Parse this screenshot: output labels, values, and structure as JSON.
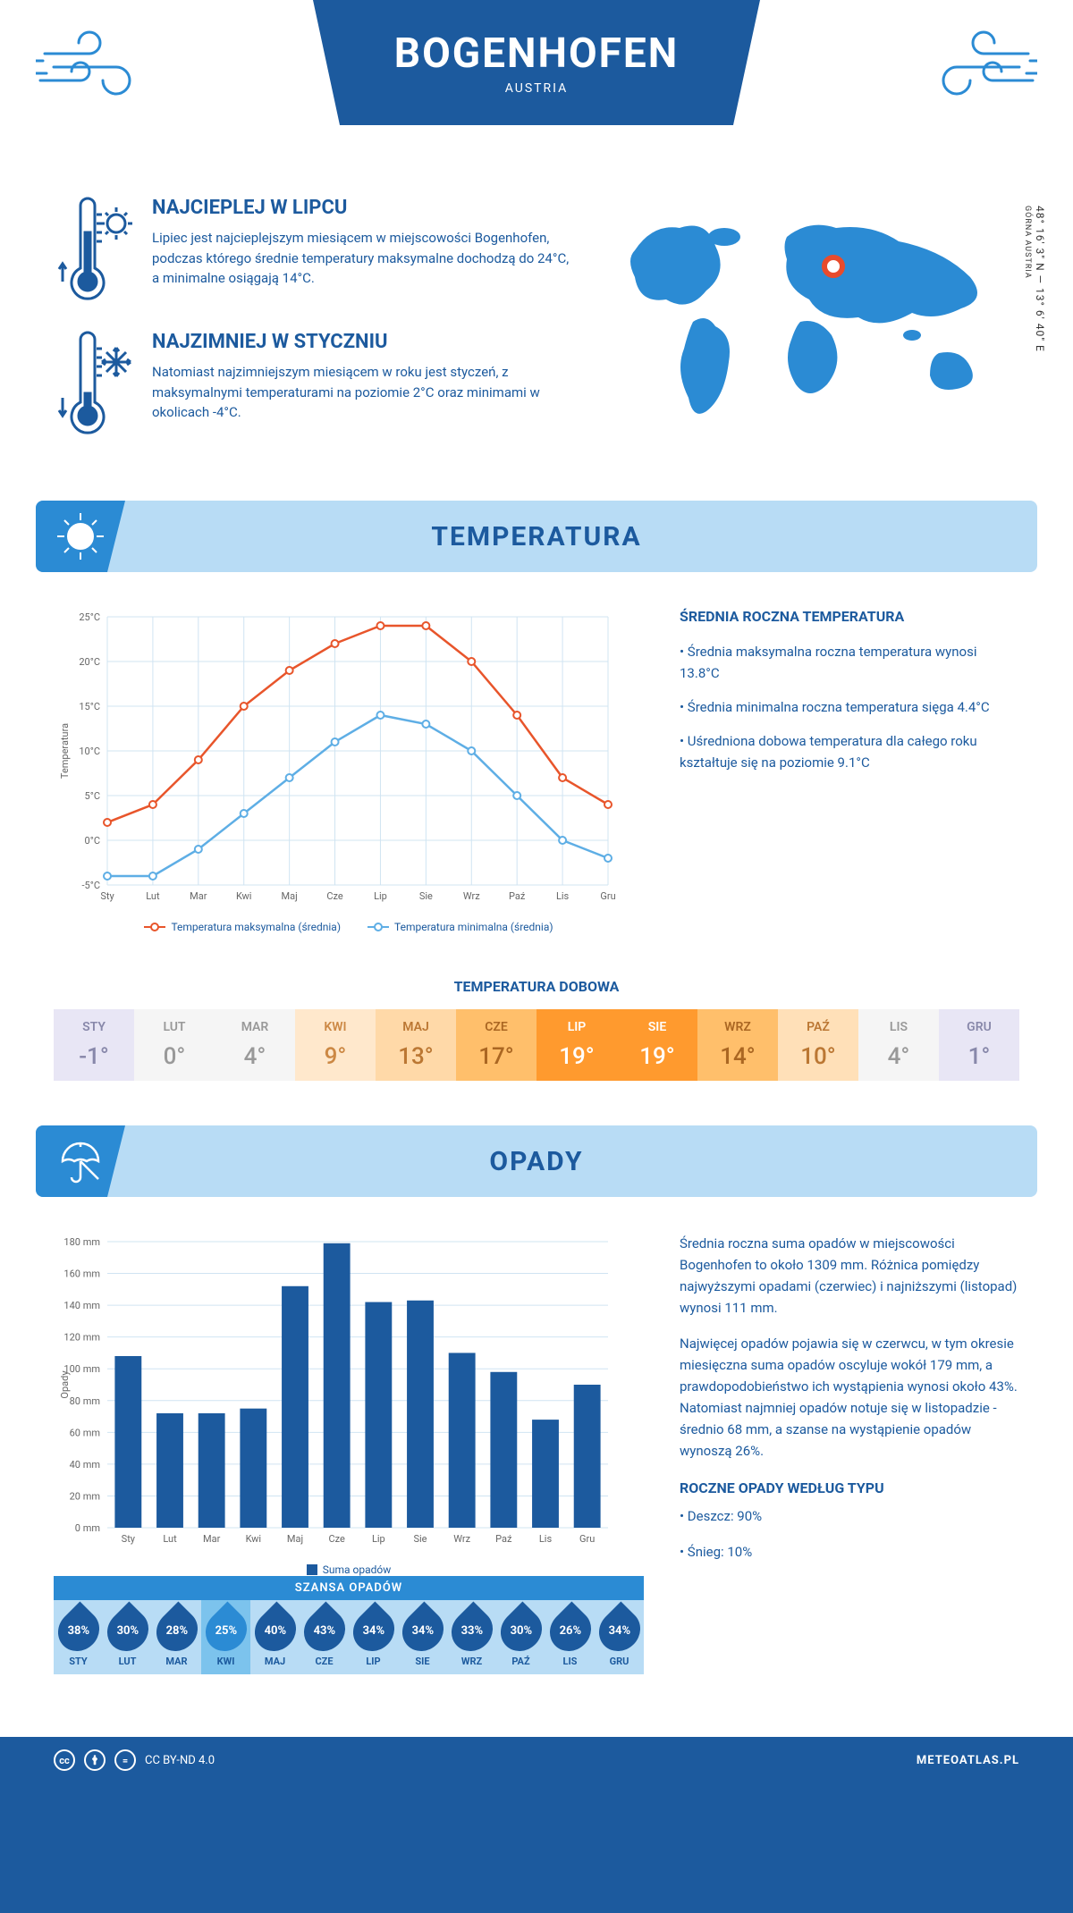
{
  "header": {
    "city": "BOGENHOFEN",
    "country": "AUSTRIA"
  },
  "coords": {
    "lat": "48° 16' 3\" N",
    "sep": "—",
    "lon": "13° 6' 40\" E",
    "region": "GÓRNA AUSTRIA"
  },
  "hottest": {
    "title": "NAJCIEPLEJ W LIPCU",
    "text": "Lipiec jest najcieplejszym miesiącem w miejscowości Bogenhofen, podczas którego średnie temperatury maksymalne dochodzą do 24°C, a minimalne osiągają 14°C."
  },
  "coldest": {
    "title": "NAJZIMNIEJ W STYCZNIU",
    "text": "Natomiast najzimniejszym miesiącem w roku jest styczeń, z maksymalnymi temperaturami na poziomie 2°C oraz minimami w okolicach -4°C."
  },
  "sections": {
    "temperature": "TEMPERATURA",
    "precipitation": "OPADY"
  },
  "months": [
    "Sty",
    "Lut",
    "Mar",
    "Kwi",
    "Maj",
    "Cze",
    "Lip",
    "Sie",
    "Wrz",
    "Paź",
    "Lis",
    "Gru"
  ],
  "months_upper": [
    "STY",
    "LUT",
    "MAR",
    "KWI",
    "MAJ",
    "CZE",
    "LIP",
    "SIE",
    "WRZ",
    "PAŹ",
    "LIS",
    "GRU"
  ],
  "temp_chart": {
    "type": "line",
    "ylabel": "Temperatura",
    "ylim": [
      -5,
      25
    ],
    "ytick_step": 5,
    "ytick_labels": [
      "-5°C",
      "0°C",
      "5°C",
      "10°C",
      "15°C",
      "20°C",
      "25°C"
    ],
    "series": {
      "max": {
        "label": "Temperatura maksymalna (średnia)",
        "color": "#e8552b",
        "values": [
          2,
          4,
          9,
          15,
          19,
          22,
          24,
          24,
          20,
          14,
          7,
          4
        ]
      },
      "min": {
        "label": "Temperatura minimalna (średnia)",
        "color": "#5eaee5",
        "values": [
          -4,
          -4,
          -1,
          3,
          7,
          11,
          14,
          13,
          10,
          5,
          0,
          -2
        ]
      }
    },
    "grid_color": "#d0e4f2",
    "background": "#ffffff"
  },
  "avg_temp": {
    "title": "ŚREDNIA ROCZNA TEMPERATURA",
    "b1": "• Średnia maksymalna roczna temperatura wynosi 13.8°C",
    "b2": "• Średnia minimalna roczna temperatura sięga 4.4°C",
    "b3": "• Uśredniona dobowa temperatura dla całego roku kształtuje się na poziomie 9.1°C"
  },
  "daily": {
    "title": "TEMPERATURA DOBOWA",
    "values": [
      "-1°",
      "0°",
      "4°",
      "9°",
      "13°",
      "17°",
      "19°",
      "19°",
      "14°",
      "10°",
      "4°",
      "1°"
    ],
    "bg_colors": [
      "#e8e6f5",
      "#f5f5f5",
      "#f5f5f5",
      "#ffe8cc",
      "#ffd9a8",
      "#ffbf6b",
      "#ff9a2e",
      "#ff9a2e",
      "#ffbf6b",
      "#ffe0b8",
      "#f5f5f5",
      "#e8e6f5"
    ],
    "text_colors": [
      "#8888aa",
      "#999999",
      "#999999",
      "#cc8844",
      "#bb7733",
      "#aa6622",
      "#ffffff",
      "#ffffff",
      "#aa6622",
      "#bb7733",
      "#999999",
      "#8888aa"
    ]
  },
  "precip_chart": {
    "type": "bar",
    "ylabel": "Opady",
    "ylim": [
      0,
      180
    ],
    "ytick_step": 20,
    "ytick_labels": [
      "0 mm",
      "20 mm",
      "40 mm",
      "60 mm",
      "80 mm",
      "100 mm",
      "120 mm",
      "140 mm",
      "160 mm",
      "180 mm"
    ],
    "bar_color": "#1c5a9e",
    "values": [
      108,
      72,
      72,
      75,
      152,
      179,
      142,
      143,
      110,
      98,
      68,
      90
    ],
    "legend": "Suma opadów",
    "background": "#ffffff",
    "grid_color": "#d0e4f2"
  },
  "precip_text": {
    "p1": "Średnia roczna suma opadów w miejscowości Bogenhofen to około 1309 mm. Różnica pomiędzy najwyższymi opadami (czerwiec) i najniższymi (listopad) wynosi 111 mm.",
    "p2": "Najwięcej opadów pojawia się w czerwcu, w tym okresie miesięczna suma opadów oscyluje wokół 179 mm, a prawdopodobieństwo ich wystąpienia wynosi około 43%. Natomiast najmniej opadów notuje się w listopadzie - średnio 68 mm, a szanse na wystąpienie opadów wynoszą 26%."
  },
  "chance": {
    "title": "SZANSA OPADÓW",
    "values": [
      "38%",
      "30%",
      "28%",
      "25%",
      "40%",
      "43%",
      "34%",
      "34%",
      "33%",
      "30%",
      "26%",
      "34%"
    ],
    "min_index": 3
  },
  "precip_type": {
    "title": "ROCZNE OPADY WEDŁUG TYPU",
    "rain": "• Deszcz: 90%",
    "snow": "• Śnieg: 10%"
  },
  "footer": {
    "license": "CC BY-ND 4.0",
    "site": "METEOATLAS.PL"
  },
  "colors": {
    "primary": "#1c5a9e",
    "light_blue": "#b8dcf5",
    "mid_blue": "#2b8bd4",
    "map_blue": "#2b8bd4",
    "marker": "#e84b2c"
  }
}
